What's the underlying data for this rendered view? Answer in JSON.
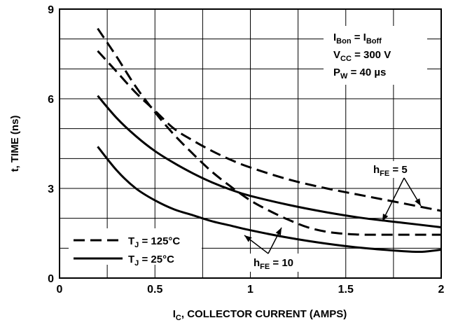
{
  "chart_data": {
    "type": "line",
    "title": "",
    "xlabel": "COLLECTOR CURRENT (AMPS)",
    "xlabel_symbol": "I",
    "xlabel_sub": "C",
    "ylabel": "t, TIME (ns)",
    "xlim": [
      0,
      2
    ],
    "ylim": [
      0,
      9
    ],
    "x_ticks": [
      0,
      0.5,
      1,
      1.5,
      2
    ],
    "x_tick_labels": [
      "0",
      "0.5",
      "1",
      "1.5",
      "2"
    ],
    "y_ticks": [
      0,
      3,
      6,
      9
    ],
    "y_tick_labels": [
      "0",
      "3",
      "6",
      "9"
    ],
    "grid": true,
    "legend_position": "bottom-left",
    "legend": [
      {
        "main": "T",
        "sub": "J",
        "rest": " = 125°C",
        "style": "dashed"
      },
      {
        "main": "T",
        "sub": "J",
        "rest": " = 25°C",
        "style": "solid"
      }
    ],
    "conditions": [
      [
        {
          "t": "I"
        },
        {
          "t": "Bon",
          "sub": true
        },
        {
          "t": " = I"
        },
        {
          "t": "Boff",
          "sub": true
        }
      ],
      [
        {
          "t": "V"
        },
        {
          "t": "CC",
          "sub": true
        },
        {
          "t": " = 300 V"
        }
      ],
      [
        {
          "t": "P"
        },
        {
          "t": "W",
          "sub": true
        },
        {
          "t": " = 40 µs"
        }
      ]
    ],
    "annotations": [
      {
        "main": "h",
        "sub": "FE",
        "rest": " = 5"
      },
      {
        "main": "h",
        "sub": "FE",
        "rest": " = 10"
      }
    ],
    "series": [
      {
        "style": "dashed",
        "x": [
          0.2,
          0.3,
          0.4,
          0.5,
          0.6,
          0.7,
          0.8,
          0.9,
          1.0,
          1.2,
          1.4,
          1.6,
          1.8,
          2.0
        ],
        "y": [
          7.6,
          6.9,
          6.2,
          5.6,
          5.0,
          4.6,
          4.25,
          3.95,
          3.7,
          3.3,
          3.0,
          2.75,
          2.5,
          2.25
        ]
      },
      {
        "style": "dashed",
        "x": [
          0.2,
          0.3,
          0.4,
          0.5,
          0.6,
          0.7,
          0.8,
          0.9,
          1.0,
          1.1,
          1.2,
          1.3,
          1.4,
          1.5,
          1.6,
          1.7,
          1.8,
          1.9,
          2.0
        ],
        "y": [
          8.35,
          7.4,
          6.4,
          5.55,
          4.8,
          4.15,
          3.55,
          3.05,
          2.6,
          2.25,
          1.95,
          1.7,
          1.55,
          1.48,
          1.45,
          1.45,
          1.45,
          1.45,
          1.45
        ]
      },
      {
        "style": "solid",
        "x": [
          0.2,
          0.3,
          0.4,
          0.5,
          0.6,
          0.7,
          0.8,
          0.9,
          1.0,
          1.2,
          1.4,
          1.6,
          1.8,
          2.0
        ],
        "y": [
          6.1,
          5.35,
          4.75,
          4.25,
          3.85,
          3.5,
          3.2,
          2.95,
          2.75,
          2.45,
          2.2,
          2.0,
          1.85,
          1.7
        ]
      },
      {
        "style": "solid",
        "x": [
          0.2,
          0.3,
          0.4,
          0.5,
          0.6,
          0.7,
          0.8,
          0.9,
          1.0,
          1.2,
          1.4,
          1.6,
          1.8,
          1.9,
          2.0
        ],
        "y": [
          4.4,
          3.6,
          3.0,
          2.6,
          2.3,
          2.1,
          1.9,
          1.75,
          1.6,
          1.35,
          1.15,
          1.0,
          0.9,
          0.88,
          0.95
        ]
      }
    ]
  }
}
